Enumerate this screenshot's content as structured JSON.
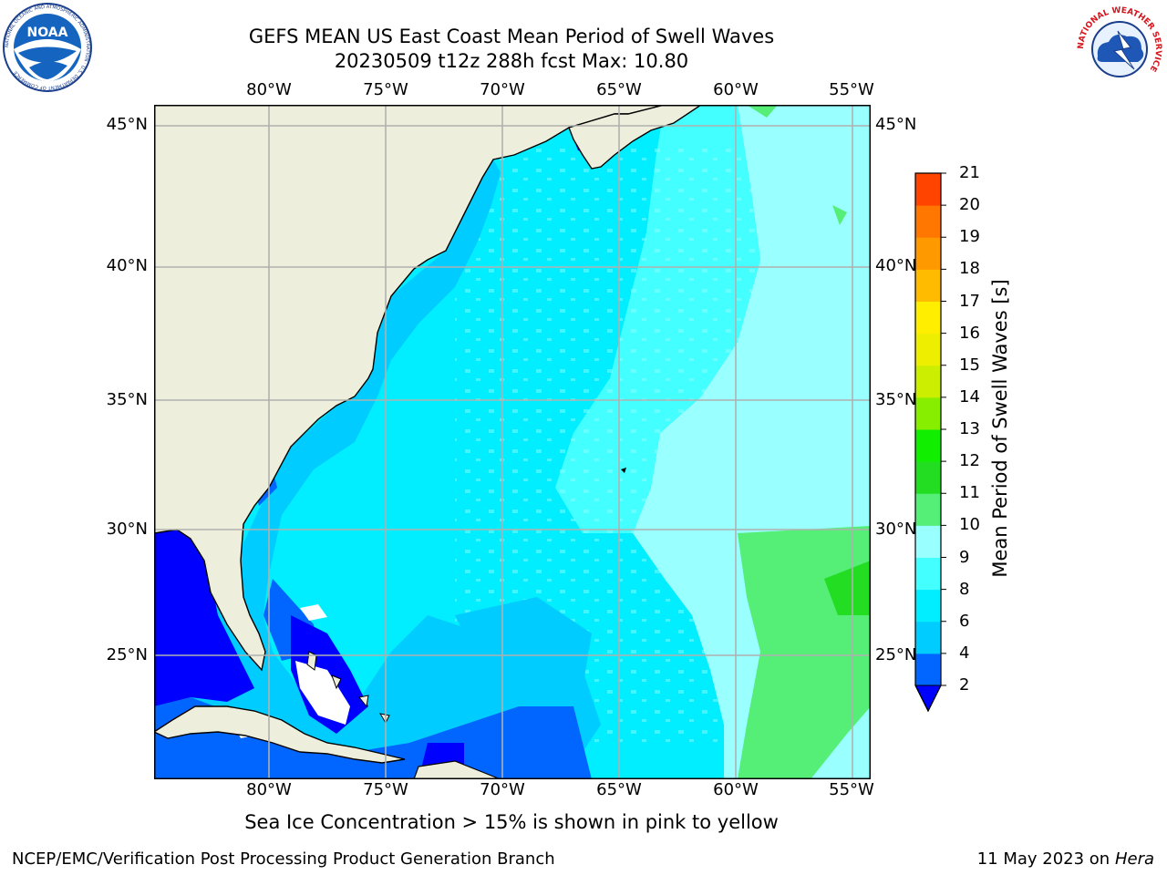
{
  "header": {
    "title_line1": "GEFS MEAN US East Coast Mean Period of Swell Waves",
    "title_line2": "20230509 t12z 288h fcst   Max: 10.80"
  },
  "logos": {
    "noaa": {
      "label": "NOAA",
      "ring_text": "NATIONAL OCEANIC AND ATMOSPHERIC ADMINISTRATION · U.S. DEPARTMENT OF COMMERCE"
    },
    "nws": {
      "ring_text": "NATIONAL WEATHER SERVICE"
    }
  },
  "map": {
    "extent": {
      "lon_min": -85,
      "lon_max": -54.3,
      "lat_min": 20.5,
      "lat_max": 45.8
    },
    "lon_ticks": [
      {
        "value": -80,
        "label": "80°W"
      },
      {
        "value": -75,
        "label": "75°W"
      },
      {
        "value": -70,
        "label": "70°W"
      },
      {
        "value": -65,
        "label": "65°W"
      },
      {
        "value": -60,
        "label": "60°W"
      },
      {
        "value": -55,
        "label": "55°W"
      }
    ],
    "lat_ticks": [
      {
        "value": 45,
        "label": "45°N"
      },
      {
        "value": 40,
        "label": "40°N"
      },
      {
        "value": 35,
        "label": "35°N"
      },
      {
        "value": 30,
        "label": "30°N"
      },
      {
        "value": 25,
        "label": "25°N"
      }
    ],
    "colors": {
      "land": "#eeeedd",
      "grid": "#b0b0b0",
      "coast": "#000000"
    }
  },
  "colorbar": {
    "title": "Mean Period of Swell Waves [s]",
    "labels": [
      "2",
      "4",
      "6",
      "8",
      "9",
      "10",
      "11",
      "12",
      "13",
      "14",
      "15",
      "16",
      "17",
      "18",
      "19",
      "20",
      "21"
    ],
    "colors": [
      "#0066ff",
      "#00ccff",
      "#00eeff",
      "#44ffff",
      "#99ffff",
      "#55ee77",
      "#22dd22",
      "#11ee00",
      "#88ee00",
      "#ccee00",
      "#eeee00",
      "#ffee00",
      "#ffbb00",
      "#ff9900",
      "#ff7700",
      "#ff4400",
      "#ff1100"
    ],
    "under_color": "#0000ff"
  },
  "footer": {
    "note": "Sea Ice Concentration > 15% is shown in pink to yellow",
    "left": "NCEP/EMC/Verification Post Processing Product Generation Branch",
    "right_date": "11 May 2023 on",
    "right_host": "Hera"
  }
}
